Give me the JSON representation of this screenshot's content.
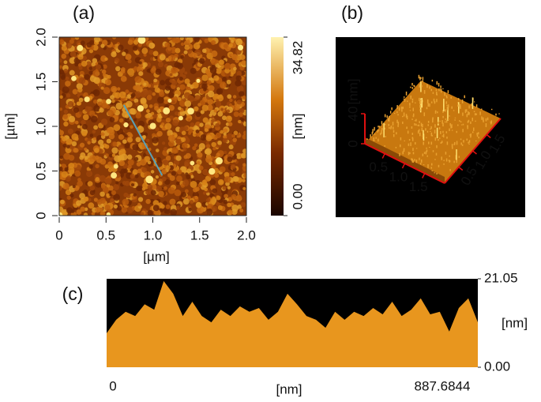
{
  "chart_data": [
    {
      "type": "image",
      "title": "(a)",
      "xlabel": "[µm]",
      "ylabel": "[µm]",
      "xlim": [
        0,
        2
      ],
      "ylim": [
        0,
        2
      ],
      "xticks": [
        0,
        0.5,
        {
          "value": 1,
          "label": "1.0"
        },
        1.5,
        {
          "value": 2,
          "label": "2.0"
        }
      ],
      "yticks": [
        0,
        0.5,
        {
          "value": 1,
          "label": "1.0"
        },
        1.5,
        {
          "value": 2,
          "label": "2.0"
        }
      ],
      "profile_line": {
        "x": [
          0.69,
          1.1
        ],
        "y": [
          1.24,
          0.45
        ],
        "color": "#5aa0b4"
      },
      "colorbar": {
        "label": "[nm]",
        "lim": [
          0,
          34.82
        ],
        "ticks": [
          {
            "value": 0,
            "label": "0.00"
          },
          34.82
        ]
      }
    },
    {
      "type": "surface",
      "title": "(b)",
      "zlabel": "[nm]",
      "zlim": [
        0,
        40
      ],
      "zticks": [
        0,
        40
      ],
      "xlim": [
        0,
        2
      ],
      "ylim": [
        0,
        2
      ],
      "xticks": [
        0.5,
        {
          "value": 1,
          "label": "1.0"
        },
        1.5
      ],
      "yticks": [
        0.5,
        {
          "value": 1,
          "label": "1.0"
        },
        1.5
      ]
    },
    {
      "type": "area",
      "title": "(c)",
      "xlabel": "[nm]",
      "ylabel": "[nm]",
      "color": "#e8961e",
      "xlim": [
        0,
        887.6844
      ],
      "xticks": [
        0,
        887.6844
      ],
      "ylim": [
        0,
        21.05
      ],
      "yticks": [
        {
          "value": 0,
          "label": "0.00"
        },
        21.05
      ],
      "x": [
        0,
        22.8,
        45.5,
        68.3,
        91.0,
        113.8,
        136.6,
        159.3,
        182.1,
        204.9,
        227.6,
        250.4,
        273.1,
        295.9,
        318.7,
        341.4,
        364.2,
        387.0,
        409.7,
        432.5,
        455.2,
        478.0,
        500.8,
        523.5,
        546.3,
        569.1,
        591.8,
        614.6,
        637.3,
        660.1,
        682.9,
        705.6,
        728.4,
        751.2,
        773.9,
        796.7,
        819.4,
        842.2,
        865.0,
        887.7
      ],
      "values": [
        8.1,
        11.3,
        13.2,
        12.2,
        15.0,
        13.7,
        20.5,
        17.5,
        12.2,
        15.6,
        12.2,
        10.7,
        13.7,
        12.2,
        14.5,
        13.2,
        14.1,
        11.3,
        13.2,
        17.5,
        15.0,
        12.2,
        11.3,
        9.4,
        13.2,
        11.3,
        13.2,
        12.2,
        14.1,
        12.6,
        15.6,
        12.2,
        13.7,
        16.4,
        12.6,
        13.2,
        8.5,
        14.1,
        16.4,
        10.7
      ]
    }
  ]
}
